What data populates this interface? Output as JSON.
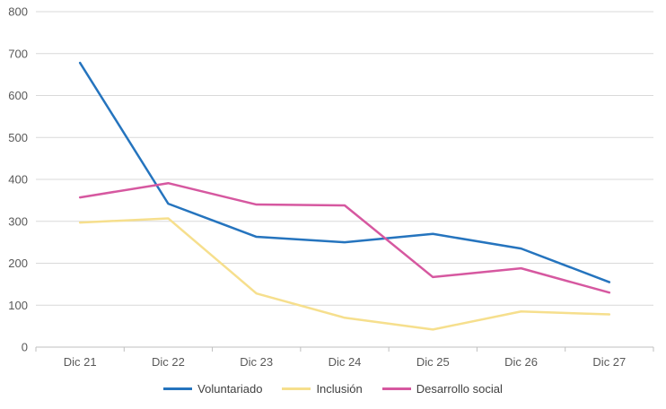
{
  "chart_data": {
    "type": "line",
    "title": "",
    "categories": [
      "Dic 21",
      "Dic 22",
      "Dic 23",
      "Dic 24",
      "Dic 25",
      "Dic 26",
      "Dic 27"
    ],
    "series": [
      {
        "name": "Voluntariado",
        "color": "#2574BE",
        "values": [
          678,
          342,
          263,
          250,
          270,
          235,
          155
        ]
      },
      {
        "name": "Inclusión",
        "color": "#F6DF8D",
        "values": [
          297,
          307,
          128,
          70,
          42,
          85,
          78
        ]
      },
      {
        "name": "Desarrollo social",
        "color": "#D658A0",
        "values": [
          357,
          391,
          340,
          338,
          167,
          188,
          130
        ]
      }
    ],
    "ylim": [
      0,
      800
    ],
    "y_step": 100,
    "y_tick_labels": [
      "0",
      "100",
      "200",
      "300",
      "400",
      "500",
      "600",
      "700",
      "800"
    ],
    "xlabel": "",
    "ylabel": "",
    "grid": "horizontal",
    "legend_position": "bottom",
    "colors": {
      "grid_line": "#D9D9D9",
      "axis_line": "#BFBFBF",
      "tick_mark": "#BFBFBF",
      "axis_label_text": "#595959",
      "legend_text": "#404040",
      "background": "#FFFFFF"
    }
  }
}
